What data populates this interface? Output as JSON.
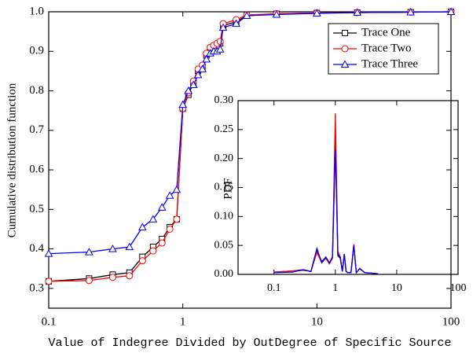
{
  "chart_data": [
    {
      "type": "line",
      "xlabel": "Value of Indegree Divided by OutDegree of Specific Source",
      "ylabel": "Cumulative distribution function",
      "xscale": "log",
      "xlim": [
        0.1,
        100
      ],
      "xticks": [
        0.1,
        1,
        10,
        100
      ],
      "ylim": [
        0.25,
        1.0
      ],
      "yticks": [
        0.3,
        0.4,
        0.5,
        0.6,
        0.7,
        0.8,
        0.9,
        {
          "value": 1.0,
          "label": "1.0"
        }
      ],
      "legend": "upper right",
      "x": [
        0.1,
        0.2,
        0.3,
        0.4,
        0.5,
        0.6,
        0.7,
        0.8,
        0.9,
        1.0,
        1.1,
        1.2,
        1.3,
        1.4,
        1.5,
        1.6,
        1.7,
        1.8,
        1.9,
        2.0,
        2.5,
        3,
        5,
        10,
        20,
        50,
        100
      ],
      "series": [
        {
          "name": "Trace One",
          "color": "#000000",
          "marker": "square",
          "values": [
            0.318,
            0.325,
            0.335,
            0.34,
            0.38,
            0.405,
            0.425,
            0.455,
            0.475,
            0.755,
            0.79,
            0.82,
            0.85,
            0.86,
            0.89,
            0.905,
            0.91,
            0.915,
            0.92,
            0.965,
            0.975,
            0.99,
            0.995,
            0.997,
            0.998,
            0.999,
            1.0
          ]
        },
        {
          "name": "Trace Two",
          "color": "#ff0000",
          "marker": "circle",
          "values": [
            0.318,
            0.32,
            0.328,
            0.332,
            0.37,
            0.395,
            0.415,
            0.45,
            0.475,
            0.755,
            0.795,
            0.825,
            0.855,
            0.865,
            0.895,
            0.91,
            0.915,
            0.92,
            0.925,
            0.97,
            0.98,
            0.992,
            0.995,
            0.997,
            0.998,
            0.999,
            1.0
          ]
        },
        {
          "name": "Trace Three",
          "color": "#0000ff",
          "marker": "triangle",
          "values": [
            0.388,
            0.392,
            0.4,
            0.405,
            0.455,
            0.475,
            0.505,
            0.535,
            0.55,
            0.765,
            0.8,
            0.815,
            0.84,
            0.855,
            0.88,
            0.895,
            0.9,
            0.9,
            0.905,
            0.96,
            0.97,
            0.99,
            0.993,
            0.996,
            0.998,
            0.999,
            1.0
          ]
        }
      ]
    },
    {
      "type": "line",
      "ylabel": "PDF",
      "xscale": "log",
      "xlim": [
        0.026,
        100
      ],
      "xticks": [
        0.1,
        1,
        10,
        100
      ],
      "ylim": [
        0,
        0.3
      ],
      "yticks": [
        {
          "value": 0,
          "label": "0.00"
        },
        {
          "value": 0.05,
          "label": "0.05"
        },
        {
          "value": 0.1,
          "label": "0.10"
        },
        {
          "value": 0.15,
          "label": "0.15"
        },
        {
          "value": 0.2,
          "label": "0.20"
        },
        {
          "value": 0.25,
          "label": "0.25"
        },
        {
          "value": 0.3,
          "label": "0.30"
        }
      ],
      "x": [
        0.1,
        0.2,
        0.3,
        0.4,
        0.5,
        0.6,
        0.7,
        0.8,
        0.9,
        1.0,
        1.1,
        1.2,
        1.3,
        1.4,
        1.5,
        1.6,
        1.8,
        2.0,
        2.2,
        2.5,
        3,
        4,
        5
      ],
      "series": [
        {
          "name": "Trace One",
          "color": "#000000",
          "values": [
            0.004,
            0.006,
            0.008,
            0.005,
            0.042,
            0.022,
            0.03,
            0.02,
            0.03,
            0.245,
            0.032,
            0.028,
            0.005,
            0.035,
            0.005,
            0.003,
            0.003,
            0.05,
            0.003,
            0.01,
            0.003,
            0.002,
            0.001
          ]
        },
        {
          "name": "Trace Two",
          "color": "#ff0000",
          "values": [
            0.004,
            0.006,
            0.007,
            0.005,
            0.038,
            0.02,
            0.028,
            0.018,
            0.028,
            0.278,
            0.04,
            0.03,
            0.005,
            0.033,
            0.005,
            0.003,
            0.003,
            0.052,
            0.003,
            0.01,
            0.003,
            0.002,
            0.001
          ]
        },
        {
          "name": "Trace Three",
          "color": "#0000ff",
          "values": [
            0.003,
            0.004,
            0.008,
            0.005,
            0.045,
            0.02,
            0.03,
            0.02,
            0.03,
            0.215,
            0.035,
            0.03,
            0.005,
            0.035,
            0.005,
            0.003,
            0.003,
            0.05,
            0.003,
            0.01,
            0.003,
            0.002,
            0.001
          ]
        }
      ]
    }
  ]
}
